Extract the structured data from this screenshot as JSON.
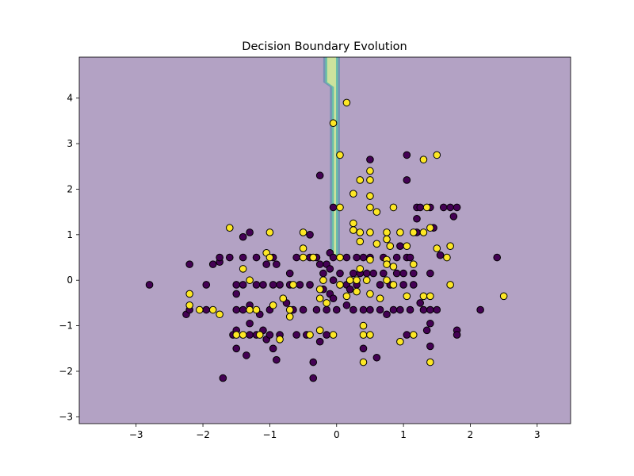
{
  "chart_data": {
    "type": "scatter",
    "title": "Decision Boundary Evolution",
    "xlabel": "",
    "ylabel": "",
    "xlim": [
      -3.85,
      3.5
    ],
    "ylim": [
      -3.15,
      4.9
    ],
    "xticks": [
      -3,
      -2,
      -1,
      0,
      1,
      2,
      3
    ],
    "yticks": [
      -3,
      -2,
      -1,
      0,
      1,
      2,
      3,
      4
    ],
    "grid": false,
    "legend": "none",
    "colors": {
      "background_region": "#b3a2c4",
      "class_0": "#440154",
      "class_1": "#fde725",
      "boundary_outer": "#6b8fb3",
      "boundary_mid": "#68c5a6",
      "boundary_inner": "#dde99b",
      "marker_edge": "#000000"
    },
    "boundary": {
      "description_region": "narrow vertical band of class-1 prediction",
      "x_range_top": [
        -0.2,
        0.05
      ],
      "x_range_lower": [
        -0.1,
        0.05
      ],
      "y_range": [
        0.5,
        4.9
      ]
    },
    "series": [
      {
        "class": 0,
        "points": [
          [
            -2.8,
            -0.1
          ],
          [
            -2.25,
            -0.75
          ],
          [
            -2.2,
            0.35
          ],
          [
            -2.2,
            -0.65
          ],
          [
            -1.95,
            -0.1
          ],
          [
            -1.95,
            -0.65
          ],
          [
            -1.85,
            0.35
          ],
          [
            -1.75,
            0.4
          ],
          [
            -1.75,
            0.5
          ],
          [
            -1.7,
            -2.15
          ],
          [
            -1.6,
            0.5
          ],
          [
            -1.55,
            -1.2
          ],
          [
            -1.5,
            -0.1
          ],
          [
            -1.5,
            -0.3
          ],
          [
            -1.5,
            -0.65
          ],
          [
            -1.5,
            -1.1
          ],
          [
            -1.5,
            -1.5
          ],
          [
            -1.4,
            0.95
          ],
          [
            -1.4,
            0.5
          ],
          [
            -1.4,
            -0.1
          ],
          [
            -1.4,
            -0.65
          ],
          [
            -1.35,
            -1.65
          ],
          [
            -1.3,
            1.05
          ],
          [
            -1.3,
            -0.55
          ],
          [
            -1.3,
            -0.95
          ],
          [
            -1.3,
            -1.2
          ],
          [
            -1.2,
            0.5
          ],
          [
            -1.2,
            -0.1
          ],
          [
            -1.2,
            -1.2
          ],
          [
            -1.15,
            -0.75
          ],
          [
            -1.1,
            -0.1
          ],
          [
            -1.1,
            -1.1
          ],
          [
            -1.05,
            0.35
          ],
          [
            -1.05,
            -1.3
          ],
          [
            -1.0,
            -0.65
          ],
          [
            -1.0,
            -1.2
          ],
          [
            -0.95,
            0.5
          ],
          [
            -0.95,
            -0.1
          ],
          [
            -0.95,
            -1.5
          ],
          [
            -0.9,
            0.35
          ],
          [
            -0.9,
            -1.75
          ],
          [
            -0.85,
            -0.1
          ],
          [
            -0.85,
            -1.2
          ],
          [
            -0.75,
            -0.5
          ],
          [
            -0.7,
            0.15
          ],
          [
            -0.7,
            -0.1
          ],
          [
            -0.65,
            -0.65
          ],
          [
            -0.6,
            0.5
          ],
          [
            -0.6,
            -1.2
          ],
          [
            -0.55,
            -0.1
          ],
          [
            -0.5,
            -0.65
          ],
          [
            -0.45,
            -1.2
          ],
          [
            -0.4,
            1.0
          ],
          [
            -0.4,
            0.5
          ],
          [
            -0.4,
            -0.1
          ],
          [
            -0.35,
            -1.8
          ],
          [
            -0.35,
            -2.15
          ],
          [
            -0.3,
            0.5
          ],
          [
            -0.3,
            -0.65
          ],
          [
            -0.25,
            2.3
          ],
          [
            -0.25,
            0.35
          ],
          [
            -0.25,
            -1.1
          ],
          [
            -0.25,
            -1.35
          ],
          [
            -0.2,
            0.15
          ],
          [
            -0.2,
            -0.2
          ],
          [
            -0.15,
            0.35
          ],
          [
            -0.15,
            -0.65
          ],
          [
            -0.15,
            -1.2
          ],
          [
            -0.1,
            0.6
          ],
          [
            -0.1,
            0.25
          ],
          [
            -0.1,
            -0.3
          ],
          [
            -0.05,
            1.6
          ],
          [
            -0.05,
            0.5
          ],
          [
            -0.05,
            0.0
          ],
          [
            -0.05,
            -0.4
          ],
          [
            0.0,
            -0.65
          ],
          [
            0.05,
            0.15
          ],
          [
            0.05,
            -0.1
          ],
          [
            0.15,
            0.5
          ],
          [
            0.15,
            -0.1
          ],
          [
            0.15,
            -0.55
          ],
          [
            0.2,
            -0.2
          ],
          [
            0.25,
            0.15
          ],
          [
            0.25,
            -0.65
          ],
          [
            0.3,
            0.5
          ],
          [
            0.3,
            -0.1
          ],
          [
            0.35,
            0.15
          ],
          [
            0.4,
            0.5
          ],
          [
            0.4,
            -0.65
          ],
          [
            0.4,
            -1.5
          ],
          [
            0.45,
            0.15
          ],
          [
            0.5,
            2.65
          ],
          [
            0.5,
            0.5
          ],
          [
            0.5,
            -0.65
          ],
          [
            0.55,
            0.15
          ],
          [
            0.6,
            -1.7
          ],
          [
            0.65,
            -0.1
          ],
          [
            0.65,
            -0.65
          ],
          [
            0.7,
            0.5
          ],
          [
            0.7,
            0.15
          ],
          [
            0.75,
            -0.75
          ],
          [
            0.8,
            -0.1
          ],
          [
            0.85,
            -0.65
          ],
          [
            0.9,
            0.5
          ],
          [
            0.9,
            0.15
          ],
          [
            0.95,
            0.75
          ],
          [
            0.95,
            -0.65
          ],
          [
            1.0,
            0.15
          ],
          [
            1.0,
            -0.1
          ],
          [
            1.05,
            0.5
          ],
          [
            1.05,
            -1.2
          ],
          [
            1.05,
            2.2
          ],
          [
            1.05,
            2.75
          ],
          [
            1.1,
            0.5
          ],
          [
            1.1,
            -0.65
          ],
          [
            1.15,
            0.15
          ],
          [
            1.15,
            -0.1
          ],
          [
            1.2,
            1.6
          ],
          [
            1.2,
            1.35
          ],
          [
            1.2,
            1.05
          ],
          [
            1.25,
            1.6
          ],
          [
            1.25,
            -0.5
          ],
          [
            1.3,
            -0.65
          ],
          [
            1.35,
            -1.1
          ],
          [
            1.4,
            1.6
          ],
          [
            1.4,
            0.15
          ],
          [
            1.4,
            -0.65
          ],
          [
            1.4,
            -0.95
          ],
          [
            1.4,
            -1.45
          ],
          [
            1.45,
            1.15
          ],
          [
            1.5,
            -0.65
          ],
          [
            1.55,
            0.55
          ],
          [
            1.6,
            1.6
          ],
          [
            1.7,
            1.6
          ],
          [
            1.75,
            1.4
          ],
          [
            1.8,
            1.6
          ],
          [
            1.8,
            -1.1
          ],
          [
            1.8,
            -1.2
          ],
          [
            2.15,
            -0.65
          ],
          [
            2.4,
            0.5
          ]
        ]
      },
      {
        "class": 1,
        "points": [
          [
            -2.2,
            -0.3
          ],
          [
            -2.2,
            -0.55
          ],
          [
            -2.05,
            -0.65
          ],
          [
            -1.85,
            -0.65
          ],
          [
            -1.75,
            -0.75
          ],
          [
            -1.6,
            1.15
          ],
          [
            -1.5,
            -1.2
          ],
          [
            -1.4,
            -1.2
          ],
          [
            -1.4,
            0.25
          ],
          [
            -1.3,
            0.0
          ],
          [
            -1.3,
            -0.65
          ],
          [
            -1.2,
            -0.65
          ],
          [
            -1.15,
            -1.2
          ],
          [
            -1.05,
            0.6
          ],
          [
            -1.0,
            1.05
          ],
          [
            -1.0,
            0.5
          ],
          [
            -0.95,
            -0.55
          ],
          [
            -0.85,
            -1.3
          ],
          [
            -0.8,
            -0.4
          ],
          [
            -0.7,
            -0.65
          ],
          [
            -0.7,
            -0.8
          ],
          [
            -0.65,
            -0.1
          ],
          [
            -0.5,
            1.05
          ],
          [
            -0.5,
            0.7
          ],
          [
            -0.5,
            0.5
          ],
          [
            -0.4,
            -1.2
          ],
          [
            -0.35,
            0.5
          ],
          [
            -0.25,
            -0.2
          ],
          [
            -0.25,
            -0.4
          ],
          [
            -0.25,
            -1.1
          ],
          [
            -0.2,
            0.0
          ],
          [
            -0.15,
            -0.5
          ],
          [
            -0.05,
            3.45
          ],
          [
            -0.05,
            -1.2
          ],
          [
            0.05,
            2.75
          ],
          [
            0.05,
            1.6
          ],
          [
            0.05,
            0.5
          ],
          [
            0.05,
            -0.1
          ],
          [
            0.15,
            3.9
          ],
          [
            0.15,
            -0.35
          ],
          [
            0.2,
            0.0
          ],
          [
            0.25,
            1.9
          ],
          [
            0.25,
            1.25
          ],
          [
            0.25,
            1.1
          ],
          [
            0.3,
            0.0
          ],
          [
            0.3,
            -0.25
          ],
          [
            0.35,
            2.2
          ],
          [
            0.35,
            1.05
          ],
          [
            0.35,
            0.85
          ],
          [
            0.35,
            0.25
          ],
          [
            0.4,
            -1.0
          ],
          [
            0.4,
            -1.2
          ],
          [
            0.4,
            -1.8
          ],
          [
            0.45,
            0.0
          ],
          [
            0.5,
            2.4
          ],
          [
            0.5,
            2.2
          ],
          [
            0.5,
            1.85
          ],
          [
            0.5,
            1.6
          ],
          [
            0.5,
            1.05
          ],
          [
            0.5,
            0.45
          ],
          [
            0.5,
            -0.3
          ],
          [
            0.5,
            -1.2
          ],
          [
            0.6,
            1.5
          ],
          [
            0.6,
            0.8
          ],
          [
            0.65,
            -0.4
          ],
          [
            0.75,
            1.05
          ],
          [
            0.75,
            0.9
          ],
          [
            0.75,
            0.45
          ],
          [
            0.75,
            0.35
          ],
          [
            0.75,
            0.0
          ],
          [
            0.8,
            0.75
          ],
          [
            0.85,
            1.6
          ],
          [
            0.85,
            0.3
          ],
          [
            0.85,
            -0.1
          ],
          [
            0.95,
            1.05
          ],
          [
            0.95,
            -1.35
          ],
          [
            1.05,
            0.75
          ],
          [
            1.05,
            -0.35
          ],
          [
            1.15,
            1.05
          ],
          [
            1.15,
            0.35
          ],
          [
            1.15,
            -1.2
          ],
          [
            1.3,
            2.65
          ],
          [
            1.3,
            1.05
          ],
          [
            1.3,
            -0.35
          ],
          [
            1.35,
            1.6
          ],
          [
            1.4,
            1.15
          ],
          [
            1.4,
            -0.35
          ],
          [
            1.4,
            -1.8
          ],
          [
            1.5,
            2.75
          ],
          [
            1.5,
            0.7
          ],
          [
            1.65,
            0.5
          ],
          [
            1.7,
            0.75
          ],
          [
            1.7,
            -0.1
          ],
          [
            2.5,
            -0.35
          ]
        ]
      }
    ]
  }
}
